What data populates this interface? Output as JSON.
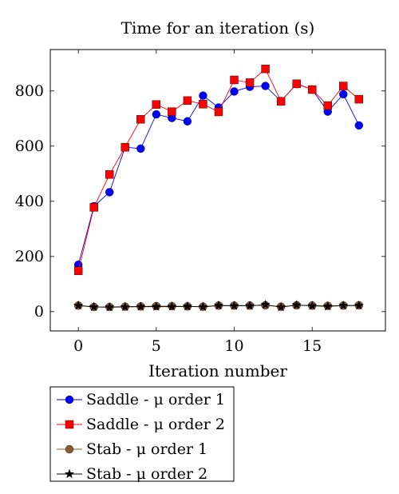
{
  "chart_data": {
    "type": "line",
    "title": "Time for an iteration (s)",
    "xlabel": "Iteration number",
    "ylabel": "",
    "xlim": [
      -1.8,
      19.7
    ],
    "ylim": [
      -70,
      950
    ],
    "xticks": [
      0,
      5,
      10,
      15
    ],
    "yticks": [
      0,
      200,
      400,
      600,
      800
    ],
    "grid": false,
    "legend_position": "below-left",
    "x": [
      0,
      1,
      2,
      3,
      4,
      5,
      6,
      7,
      8,
      9,
      10,
      11,
      12,
      13,
      14,
      15,
      16,
      17,
      18
    ],
    "series": [
      {
        "name": "Saddle - μ order 1",
        "color": "#0000ff",
        "marker": "circle",
        "values": [
          170,
          382,
          433,
          596,
          591,
          715,
          702,
          690,
          783,
          740,
          798,
          815,
          818,
          763,
          825,
          805,
          725,
          788,
          675
        ]
      },
      {
        "name": "Saddle - μ order 2",
        "color": "#ff0000",
        "marker": "square",
        "values": [
          148,
          378,
          497,
          596,
          697,
          751,
          725,
          765,
          752,
          724,
          840,
          830,
          880,
          762,
          826,
          805,
          747,
          818,
          770
        ]
      },
      {
        "name": "Stab - μ order 1",
        "color": "#8b5a2b",
        "marker": "circle",
        "values": [
          22,
          17,
          17,
          18,
          19,
          20,
          20,
          19,
          18,
          22,
          22,
          22,
          23,
          18,
          23,
          22,
          21,
          22,
          23
        ]
      },
      {
        "name": "Stab - μ order 2",
        "color": "#000000",
        "marker": "star",
        "values": [
          22,
          17,
          16,
          17,
          18,
          18,
          18,
          19,
          17,
          22,
          21,
          21,
          25,
          16,
          24,
          21,
          19,
          22,
          22
        ]
      }
    ]
  }
}
